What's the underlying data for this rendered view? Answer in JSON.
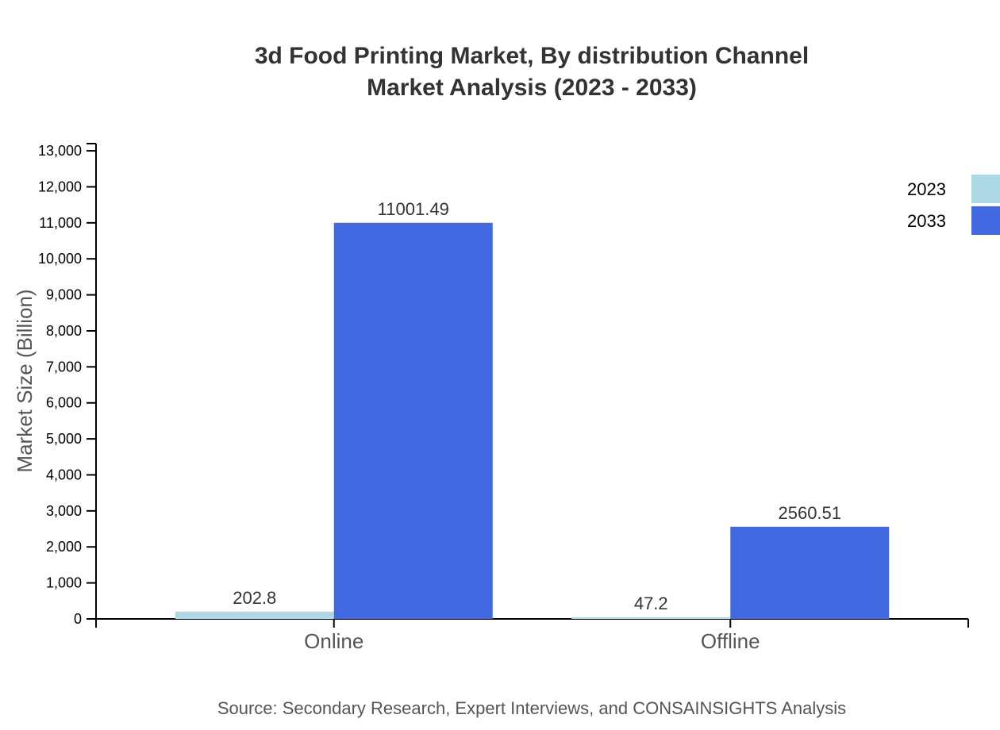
{
  "chart_data": {
    "type": "bar",
    "title": [
      "3d Food Printing Market, By distribution Channel",
      "Market Analysis (2023 - 2033)"
    ],
    "xlabel": "",
    "ylabel": "Market Size (Billion)",
    "categories": [
      "Online",
      "Offline"
    ],
    "series": [
      {
        "name": "2023",
        "values": [
          202.8,
          47.2
        ],
        "labels": [
          "202.8",
          "47.2"
        ],
        "color": "#add8e6"
      },
      {
        "name": "2033",
        "values": [
          11001.49,
          2560.51
        ],
        "labels": [
          "11001.49",
          "2560.51"
        ],
        "color": "#4169e1"
      }
    ],
    "ylim": [
      0,
      13200
    ],
    "yticks": [
      0,
      1000,
      2000,
      3000,
      4000,
      5000,
      6000,
      7000,
      8000,
      9000,
      10000,
      11000,
      12000,
      13000
    ],
    "ytick_labels": [
      "0",
      "1,000",
      "2,000",
      "3,000",
      "4,000",
      "5,000",
      "6,000",
      "7,000",
      "8,000",
      "9,000",
      "10,000",
      "11,000",
      "12,000",
      "13,000"
    ],
    "grid": false,
    "legend_position": "top-right",
    "source": "Source: Secondary Research, Expert Interviews, and CONSAINSIGHTS Analysis"
  }
}
